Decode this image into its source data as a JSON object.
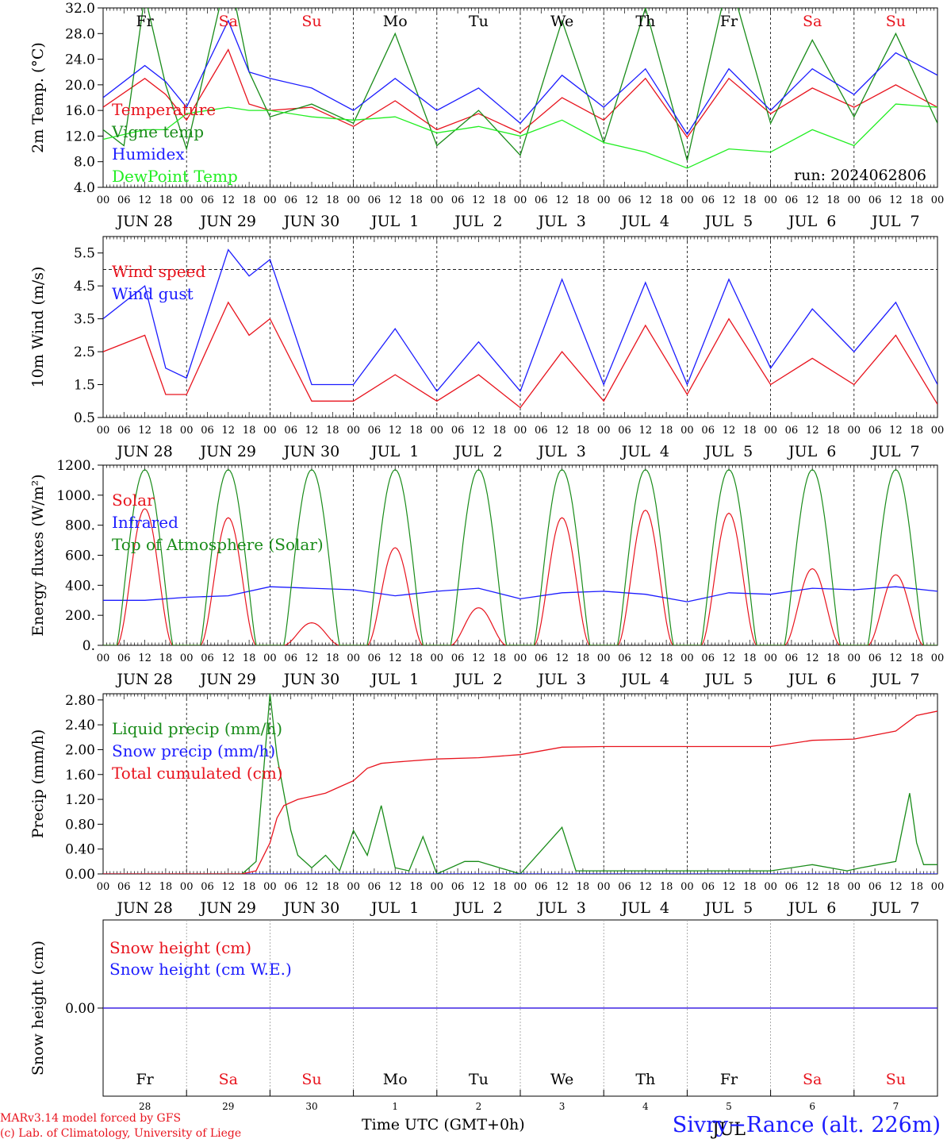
{
  "chart_data": {
    "type": "line",
    "run": "run: 2024062806",
    "time_axis": {
      "start": "2024-06-28T00:00Z",
      "end": "2024-07-08T00:00Z",
      "hour_ticks": [
        "00",
        "06",
        "12",
        "18"
      ],
      "final_tick": "00",
      "date_labels": [
        "JUN 28",
        "JUN 29",
        "JUN 30",
        "JUL  1",
        "JUL  2",
        "JUL  3",
        "JUL  4",
        "JUL  5",
        "JUL  6",
        "JUL  7"
      ],
      "weekdays": [
        "Fr",
        "Sa",
        "Su",
        "Mo",
        "Tu",
        "We",
        "Th",
        "Fr",
        "Sa",
        "Su"
      ],
      "weekend_color": "#e8141e",
      "weekday_color": "#000000",
      "day_numbers": [
        "28",
        "29",
        "30",
        "1",
        "2",
        "3",
        "4",
        "5",
        "6",
        "7"
      ],
      "bottom_month": "JUL"
    },
    "panels": [
      {
        "id": "temp",
        "ylabel": "2m Temp. (°C)",
        "ylim": [
          4,
          32
        ],
        "ticks": [
          "4.0",
          "8.0",
          "12.0",
          "16.0",
          "20.0",
          "24.0",
          "28.0",
          "32.0"
        ],
        "series": [
          {
            "name": "Temperature",
            "color": "#e8141e",
            "x_hours": [
              0,
              12,
              18,
              24,
              36,
              42,
              48,
              60,
              72,
              84,
              96,
              108,
              120,
              132,
              144,
              156,
              168,
              180,
              192,
              204,
              216,
              228,
              240
            ],
            "values": [
              16.5,
              21,
              18.5,
              14.5,
              25.5,
              17,
              16,
              16.5,
              13.5,
              17.5,
              13,
              15.5,
              12.5,
              18,
              14.5,
              21,
              11.8,
              21,
              15.5,
              19.5,
              16.5,
              20,
              16.5
            ]
          },
          {
            "name": "Vigne temp",
            "color": "#1a8c1a",
            "x_hours": [
              0,
              6,
              12,
              18,
              24,
              36,
              42,
              48,
              60,
              72,
              84,
              96,
              108,
              120,
              132,
              144,
              156,
              168,
              180,
              192,
              204,
              216,
              228,
              240
            ],
            "values": [
              13,
              10.5,
              34,
              20,
              10,
              38,
              22,
              15,
              17,
              14,
              28,
              10.5,
              16,
              9,
              30,
              11,
              32,
              8.2,
              37,
              14,
              27,
              15,
              28,
              14
            ]
          },
          {
            "name": "Humidex",
            "color": "#1c1cff",
            "x_hours": [
              0,
              12,
              18,
              24,
              36,
              42,
              48,
              60,
              72,
              84,
              96,
              108,
              120,
              132,
              144,
              156,
              168,
              180,
              192,
              204,
              216,
              228,
              240
            ],
            "values": [
              18,
              23,
              20.5,
              16.5,
              30,
              22,
              21,
              19.5,
              16,
              21,
              16,
              19.5,
              14,
              21.5,
              16.5,
              22.5,
              12.3,
              22.5,
              16,
              22.5,
              18.5,
              25,
              21.5
            ]
          },
          {
            "name": "DewPoint Temp",
            "color": "#22ee22",
            "x_hours": [
              0,
              12,
              18,
              24,
              36,
              42,
              48,
              60,
              72,
              84,
              96,
              108,
              120,
              132,
              144,
              156,
              168,
              180,
              192,
              204,
              216,
              228,
              240
            ],
            "values": [
              11.5,
              13,
              13,
              15.5,
              16.5,
              16,
              16,
              15,
              14.5,
              15,
              12.5,
              13.5,
              12,
              14.5,
              11,
              9.5,
              7,
              10,
              9.5,
              13,
              10.5,
              17,
              16.5
            ]
          }
        ]
      },
      {
        "id": "wind",
        "ylabel": "10m Wind (m/s)",
        "ylim": [
          0.5,
          6
        ],
        "ticks": [
          "0.5",
          "1.5",
          "2.5",
          "3.5",
          "4.5",
          "5.5"
        ],
        "ref_line": 5,
        "series": [
          {
            "name": "Wind speed",
            "color": "#e8141e",
            "x_hours": [
              0,
              12,
              18,
              24,
              36,
              42,
              48,
              60,
              72,
              84,
              96,
              108,
              120,
              132,
              144,
              156,
              168,
              180,
              192,
              204,
              216,
              228,
              240
            ],
            "values": [
              2.5,
              3,
              1.2,
              1.2,
              4,
              3,
              3.5,
              1,
              1,
              1.8,
              1,
              1.8,
              0.8,
              2.5,
              1,
              3.3,
              1.2,
              3.5,
              1.5,
              2.3,
              1.5,
              3,
              0.9
            ]
          },
          {
            "name": "Wind gust",
            "color": "#1c1cff",
            "x_hours": [
              0,
              12,
              18,
              24,
              36,
              42,
              48,
              60,
              72,
              84,
              96,
              108,
              120,
              132,
              144,
              156,
              168,
              180,
              192,
              204,
              216,
              228,
              240
            ],
            "values": [
              3.5,
              4.5,
              2,
              1.7,
              5.6,
              4.8,
              5.3,
              1.5,
              1.5,
              3.2,
              1.3,
              2.8,
              1.3,
              4.7,
              1.5,
              4.6,
              1.5,
              4.7,
              2,
              3.8,
              2.5,
              4,
              1.5
            ]
          }
        ]
      },
      {
        "id": "flux",
        "ylabel": "Energy fluxes (W/m²)",
        "ylim": [
          0,
          1200
        ],
        "ticks": [
          "0.",
          "200.",
          "400.",
          "600.",
          "800.",
          "1000.",
          "1200."
        ],
        "series": [
          {
            "name": "Solar",
            "color": "#e8141e",
            "daily_peak": [
              910,
              850,
              150,
              650,
              250,
              850,
              900,
              880,
              510,
              470
            ]
          },
          {
            "name": "Infrared",
            "color": "#1c1cff",
            "x_hours": [
              0,
              12,
              24,
              36,
              48,
              60,
              72,
              84,
              96,
              108,
              120,
              132,
              144,
              156,
              168,
              180,
              192,
              204,
              216,
              228,
              240
            ],
            "values": [
              300,
              300,
              320,
              330,
              390,
              380,
              370,
              330,
              360,
              380,
              310,
              350,
              360,
              340,
              290,
              350,
              340,
              380,
              370,
              390,
              360
            ]
          },
          {
            "name": "Top of Atmosphere (Solar)",
            "color": "#1a8c1a",
            "daily_peak": [
              1170,
              1170,
              1170,
              1170,
              1170,
              1170,
              1170,
              1170,
              1170,
              1170
            ]
          }
        ]
      },
      {
        "id": "precip",
        "ylabel": "Precip (mm/h)",
        "ylim": [
          0,
          2.9
        ],
        "ticks": [
          "0.00",
          "0.40",
          "0.80",
          "1.20",
          "1.60",
          "2.00",
          "2.40",
          "2.80"
        ],
        "series": [
          {
            "name": "Liquid precip (mm/h)",
            "color": "#1a8c1a",
            "x_hours": [
              0,
              40,
              44,
              48,
              50,
              52,
              54,
              56,
              60,
              64,
              68,
              72,
              76,
              80,
              84,
              88,
              92,
              96,
              104,
              108,
              120,
              132,
              136,
              192,
              204,
              214,
              218,
              228,
              232,
              234,
              236,
              240
            ],
            "values": [
              0,
              0,
              0.2,
              2.9,
              1.9,
              1.3,
              0.7,
              0.3,
              0.1,
              0.3,
              0.05,
              0.7,
              0.3,
              1.1,
              0.1,
              0.05,
              0.6,
              0,
              0.2,
              0.2,
              0,
              0.75,
              0.05,
              0.05,
              0.15,
              0.05,
              0.1,
              0.2,
              1.3,
              0.5,
              0.15,
              0.15
            ]
          },
          {
            "name": "Snow precip (mm/h)",
            "color": "#1c1cff",
            "x_hours": [
              0,
              240
            ],
            "values": [
              0,
              0
            ]
          },
          {
            "name": "Total cumulated (cm)",
            "color": "#e8141e",
            "x_hours": [
              0,
              40,
              44,
              48,
              50,
              52,
              56,
              60,
              64,
              68,
              72,
              76,
              80,
              84,
              96,
              108,
              120,
              132,
              144,
              156,
              168,
              180,
              192,
              204,
              216,
              228,
              234,
              240
            ],
            "values": [
              0,
              0,
              0.05,
              0.5,
              0.9,
              1.1,
              1.2,
              1.25,
              1.3,
              1.4,
              1.5,
              1.7,
              1.78,
              1.8,
              1.85,
              1.87,
              1.92,
              2.04,
              2.05,
              2.05,
              2.05,
              2.05,
              2.05,
              2.15,
              2.17,
              2.3,
              2.55,
              2.62
            ]
          }
        ]
      },
      {
        "id": "snow",
        "ylabel": "Snow height (cm)",
        "ylim": [
          -1,
          1
        ],
        "ticks": [
          "0.00"
        ],
        "series": [
          {
            "name": "Snow height (cm)",
            "color": "#e8141e",
            "x_hours": [
              0,
              240
            ],
            "values": [
              0,
              0
            ]
          },
          {
            "name": "Snow height (cm W.E.)",
            "color": "#1c1cff",
            "x_hours": [
              0,
              240
            ],
            "values": [
              0,
              0
            ]
          }
        ]
      }
    ]
  },
  "footer": {
    "credit_1": "MARv3.14 model forced by GFS",
    "credit_2": "(c) Lab. of Climatology, University of Liege",
    "xlabel": "Time UTC (GMT+0h)",
    "site": "Sivry−Rance (alt. 226m)"
  }
}
